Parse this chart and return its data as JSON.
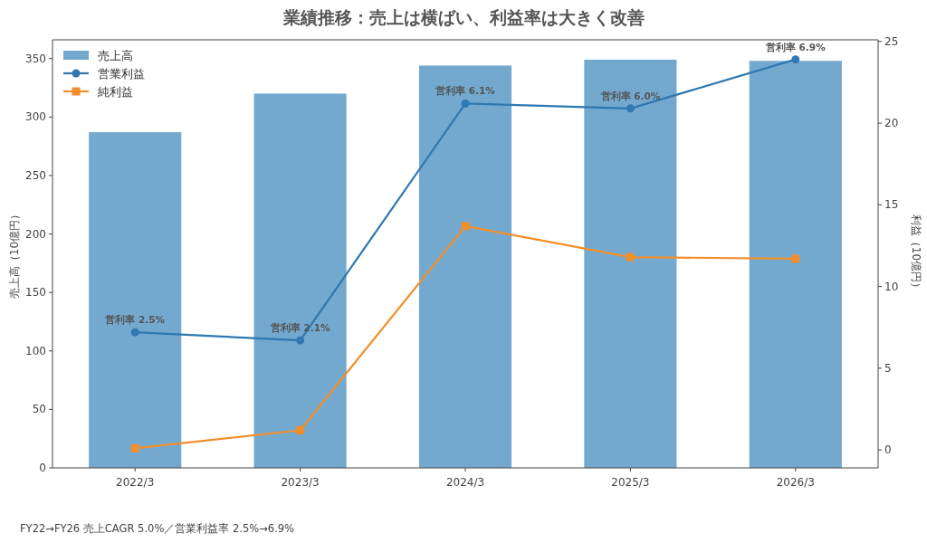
{
  "chart_data": {
    "type": "bar",
    "title": "業績推移：売上は横ばい、利益率は大きく改善",
    "categories": [
      "2022/3",
      "2023/3",
      "2024/3",
      "2025/3",
      "2026/3"
    ],
    "series": [
      {
        "name": "売上高",
        "color": "#73a9cf",
        "values": [
          287,
          320,
          344,
          349,
          348
        ]
      },
      {
        "name": "営業利益",
        "type": "line",
        "axis": "y2",
        "color": "#2f78b0",
        "marker": "circle",
        "values": [
          7.2,
          6.7,
          21.2,
          20.9,
          23.9
        ],
        "value_labels": [
          "営利率 2.5%",
          "営利率 2.1%",
          "営利率 6.1%",
          "営利率 6.0%",
          "営利率 6.9%"
        ]
      },
      {
        "name": "純利益",
        "type": "line",
        "axis": "y2",
        "color": "#f28e2b",
        "marker": "square",
        "values": [
          0.1,
          1.2,
          13.7,
          11.8,
          11.7
        ]
      }
    ],
    "ylabel": "売上高（10億円）",
    "y2label": "利益（10億円）",
    "ylim": [
      0,
      366
    ],
    "yticks": [
      0,
      50,
      100,
      150,
      200,
      250,
      300,
      350
    ],
    "y2lim": [
      -1.1,
      25.1
    ],
    "y2ticks": [
      0,
      5,
      10,
      15,
      20,
      25
    ],
    "legend": "top left",
    "grid": false,
    "annotations": [
      "FY22→FY26 売上CAGR 5.0%／営業利益率 2.5%→6.9%"
    ]
  }
}
